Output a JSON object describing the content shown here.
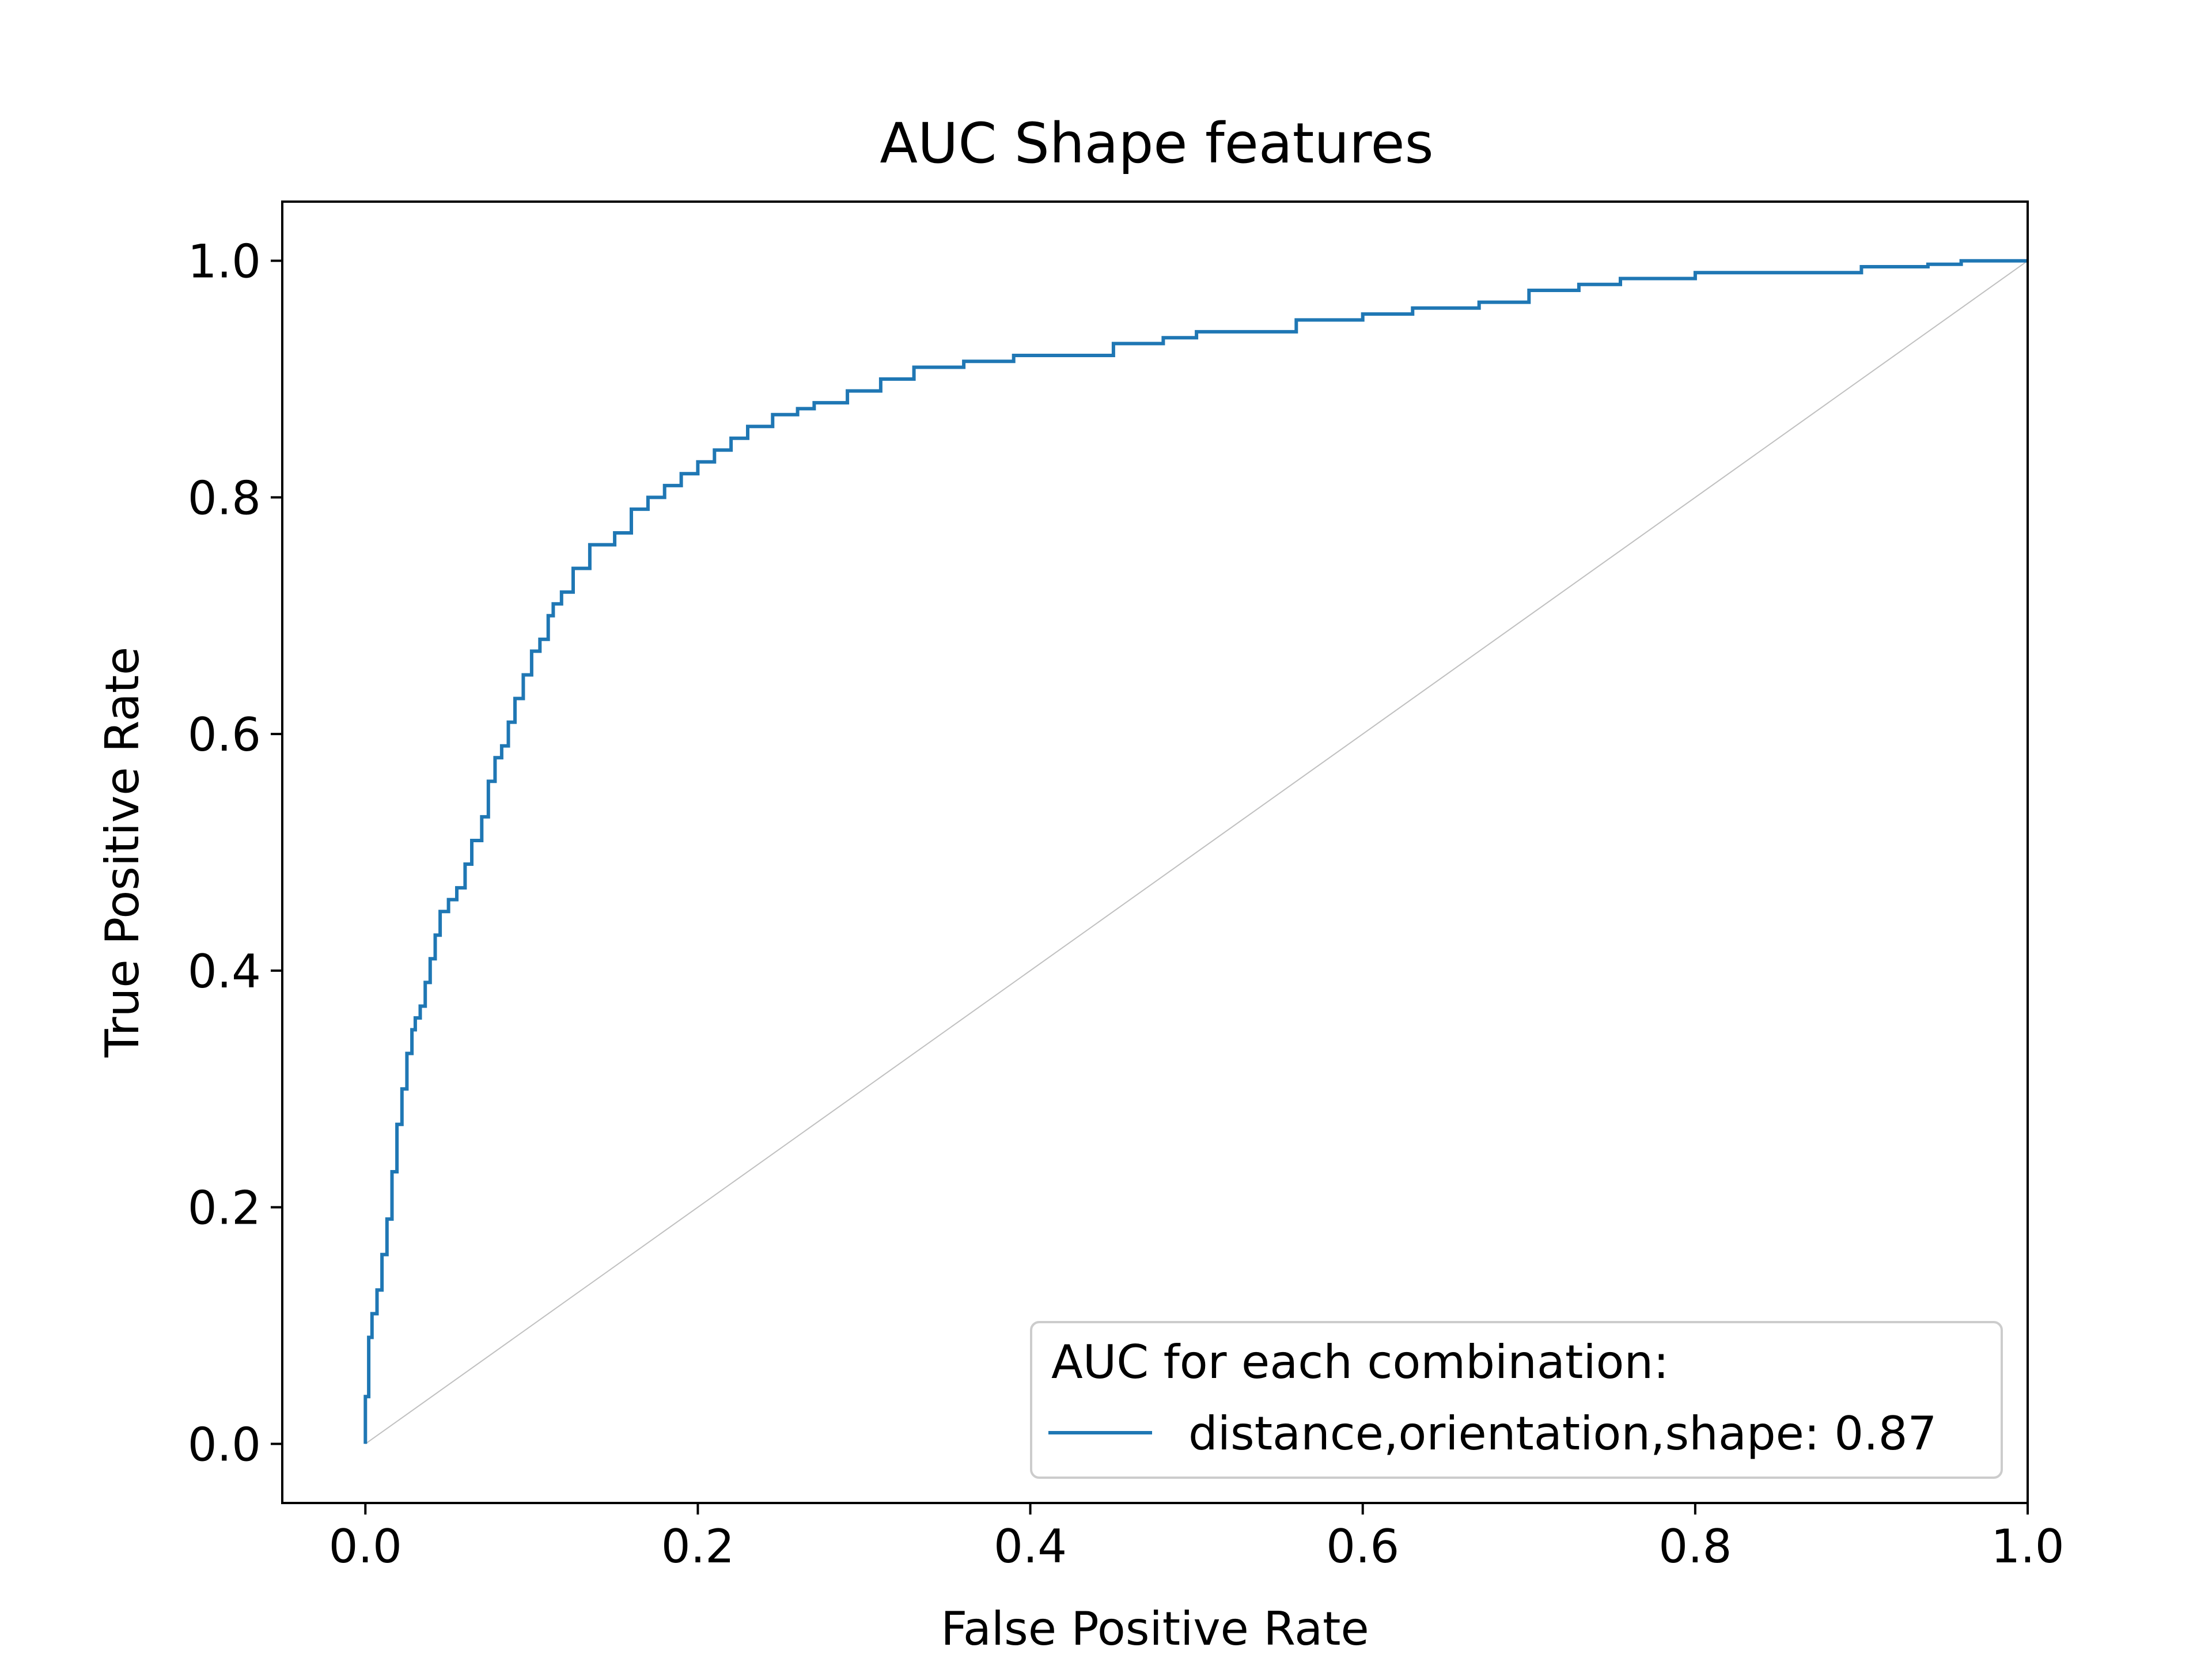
{
  "chart_data": {
    "type": "line",
    "title": "AUC Shape features",
    "xlabel": "False Positive Rate",
    "ylabel": "True Positive Rate",
    "xlim": [
      -0.05,
      1.0
    ],
    "ylim": [
      -0.05,
      1.05
    ],
    "x_ticks": [
      "0.0",
      "0.2",
      "0.4",
      "0.6",
      "0.8",
      "1.0"
    ],
    "y_ticks": [
      "0.0",
      "0.2",
      "0.4",
      "0.6",
      "0.8",
      "1.0"
    ],
    "grid": false,
    "legend": {
      "title": "AUC for each combination:",
      "location": "lower right",
      "entries": [
        "distance,orientation,shape: 0.87"
      ]
    },
    "reference_line": {
      "x": [
        0,
        1
      ],
      "y": [
        0,
        1
      ],
      "color": "#c0c0c0"
    },
    "series": [
      {
        "name": "distance,orientation,shape: 0.87",
        "color": "#1f77b4",
        "x": [
          0.0,
          0.0,
          0.002,
          0.002,
          0.004,
          0.004,
          0.007,
          0.007,
          0.01,
          0.01,
          0.013,
          0.013,
          0.016,
          0.016,
          0.019,
          0.019,
          0.022,
          0.022,
          0.025,
          0.025,
          0.028,
          0.028,
          0.03,
          0.03,
          0.033,
          0.033,
          0.036,
          0.036,
          0.039,
          0.039,
          0.042,
          0.042,
          0.045,
          0.045,
          0.05,
          0.05,
          0.055,
          0.055,
          0.06,
          0.06,
          0.064,
          0.064,
          0.07,
          0.07,
          0.074,
          0.074,
          0.078,
          0.078,
          0.082,
          0.082,
          0.086,
          0.086,
          0.09,
          0.09,
          0.095,
          0.095,
          0.1,
          0.1,
          0.105,
          0.105,
          0.11,
          0.11,
          0.113,
          0.113,
          0.118,
          0.118,
          0.125,
          0.125,
          0.135,
          0.135,
          0.15,
          0.15,
          0.16,
          0.16,
          0.17,
          0.17,
          0.18,
          0.18,
          0.19,
          0.19,
          0.2,
          0.2,
          0.21,
          0.21,
          0.22,
          0.22,
          0.23,
          0.23,
          0.245,
          0.245,
          0.26,
          0.26,
          0.27,
          0.27,
          0.29,
          0.29,
          0.31,
          0.31,
          0.33,
          0.33,
          0.36,
          0.36,
          0.39,
          0.39,
          0.45,
          0.45,
          0.48,
          0.48,
          0.5,
          0.5,
          0.56,
          0.56,
          0.6,
          0.6,
          0.63,
          0.63,
          0.67,
          0.67,
          0.7,
          0.7,
          0.73,
          0.73,
          0.755,
          0.755,
          0.8,
          0.8,
          0.9,
          0.9,
          0.94,
          0.94,
          0.96,
          0.96,
          1.0
        ],
        "y": [
          0.0,
          0.04,
          0.04,
          0.09,
          0.09,
          0.11,
          0.11,
          0.13,
          0.13,
          0.16,
          0.16,
          0.19,
          0.19,
          0.23,
          0.23,
          0.27,
          0.27,
          0.3,
          0.3,
          0.33,
          0.33,
          0.35,
          0.35,
          0.36,
          0.36,
          0.37,
          0.37,
          0.39,
          0.39,
          0.41,
          0.41,
          0.43,
          0.43,
          0.45,
          0.45,
          0.46,
          0.46,
          0.47,
          0.47,
          0.49,
          0.49,
          0.51,
          0.51,
          0.53,
          0.53,
          0.56,
          0.56,
          0.58,
          0.58,
          0.59,
          0.59,
          0.61,
          0.61,
          0.63,
          0.63,
          0.65,
          0.65,
          0.67,
          0.67,
          0.68,
          0.68,
          0.7,
          0.7,
          0.71,
          0.71,
          0.72,
          0.72,
          0.74,
          0.74,
          0.76,
          0.76,
          0.77,
          0.77,
          0.79,
          0.79,
          0.8,
          0.8,
          0.81,
          0.81,
          0.82,
          0.82,
          0.83,
          0.83,
          0.84,
          0.84,
          0.85,
          0.85,
          0.86,
          0.86,
          0.87,
          0.87,
          0.875,
          0.875,
          0.88,
          0.88,
          0.89,
          0.89,
          0.9,
          0.9,
          0.91,
          0.91,
          0.915,
          0.915,
          0.92,
          0.92,
          0.93,
          0.93,
          0.935,
          0.935,
          0.94,
          0.94,
          0.95,
          0.95,
          0.955,
          0.955,
          0.96,
          0.96,
          0.965,
          0.965,
          0.975,
          0.975,
          0.98,
          0.98,
          0.985,
          0.985,
          0.99,
          0.99,
          0.995,
          0.995,
          0.997,
          0.997,
          1.0,
          1.0
        ]
      }
    ]
  }
}
